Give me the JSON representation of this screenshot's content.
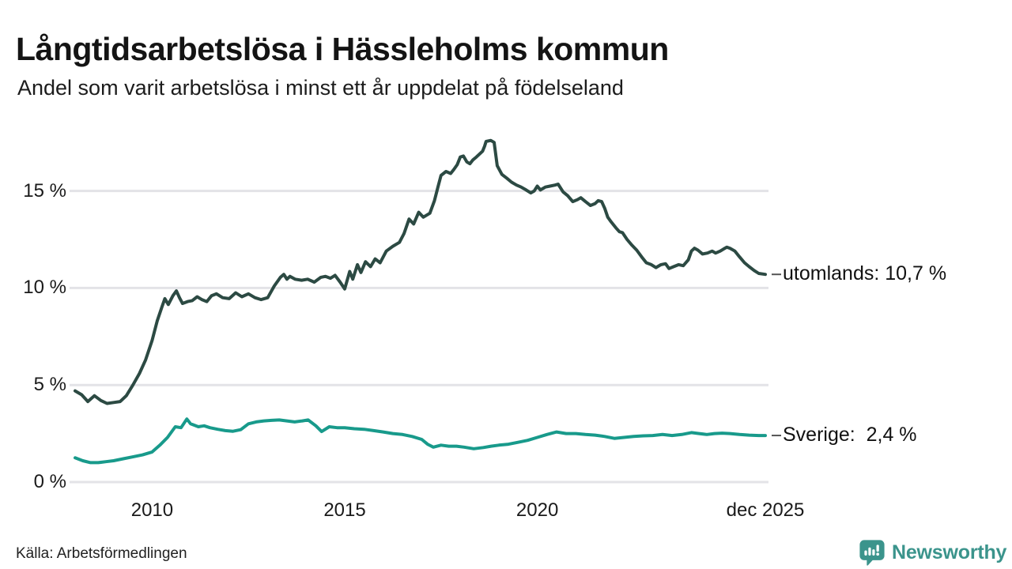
{
  "header": {
    "title": "Långtidsarbetslösa i Hässleholms kommun",
    "subtitle": "Andel som varit arbetslösa i minst ett år uppdelat på födelseland"
  },
  "footer": {
    "source": "Källa: Arbetsförmedlingen",
    "brand": "Newsworthy",
    "brand_color": "#3b948c",
    "logo_icon": "bar-chart-speech-bubble-icon"
  },
  "colors": {
    "grid": "#e3e3e7",
    "axis_text": "#1a1a1a",
    "end_dash": "#555555",
    "background": "#ffffff"
  },
  "chart_data": {
    "type": "line",
    "title": "Långtidsarbetslösa i Hässleholms kommun",
    "subtitle": "Andel som varit arbetslösa i minst ett år uppdelat på födelseland",
    "xlabel": "",
    "ylabel": "",
    "grid": true,
    "legend_position": "end-of-line",
    "x_axis": {
      "range": [
        2008.0,
        2025.92
      ],
      "ticks": [
        {
          "year": 2010,
          "label": "2010"
        },
        {
          "year": 2015,
          "label": "2015"
        },
        {
          "year": 2020,
          "label": "2020"
        },
        {
          "year": 2025.92,
          "label": "dec 2025"
        }
      ]
    },
    "y_axis": {
      "unit": "%",
      "range": [
        0,
        18
      ],
      "ticks": [
        0,
        5,
        10,
        15
      ],
      "tick_labels": [
        "0 %",
        "5 %",
        "10 %",
        "15 %"
      ]
    },
    "series": [
      {
        "name": "utomlands",
        "label": "utomlands: 10,7 %",
        "end_value": "10,7 %",
        "color": "#2c4a43",
        "points": [
          [
            2008.0,
            4.7
          ],
          [
            2008.17,
            4.5
          ],
          [
            2008.33,
            4.15
          ],
          [
            2008.5,
            4.45
          ],
          [
            2008.67,
            4.2
          ],
          [
            2008.83,
            4.05
          ],
          [
            2009.0,
            4.1
          ],
          [
            2009.17,
            4.15
          ],
          [
            2009.33,
            4.45
          ],
          [
            2009.5,
            5.0
          ],
          [
            2009.67,
            5.6
          ],
          [
            2009.83,
            6.3
          ],
          [
            2010.0,
            7.3
          ],
          [
            2010.13,
            8.3
          ],
          [
            2010.25,
            9.0
          ],
          [
            2010.33,
            9.45
          ],
          [
            2010.42,
            9.15
          ],
          [
            2010.54,
            9.6
          ],
          [
            2010.63,
            9.85
          ],
          [
            2010.71,
            9.5
          ],
          [
            2010.79,
            9.2
          ],
          [
            2010.92,
            9.3
          ],
          [
            2011.04,
            9.35
          ],
          [
            2011.17,
            9.55
          ],
          [
            2011.29,
            9.4
          ],
          [
            2011.42,
            9.3
          ],
          [
            2011.54,
            9.6
          ],
          [
            2011.67,
            9.7
          ],
          [
            2011.83,
            9.5
          ],
          [
            2012.0,
            9.45
          ],
          [
            2012.17,
            9.75
          ],
          [
            2012.33,
            9.55
          ],
          [
            2012.5,
            9.7
          ],
          [
            2012.67,
            9.5
          ],
          [
            2012.83,
            9.4
          ],
          [
            2013.0,
            9.5
          ],
          [
            2013.17,
            10.1
          ],
          [
            2013.33,
            10.55
          ],
          [
            2013.42,
            10.7
          ],
          [
            2013.5,
            10.45
          ],
          [
            2013.58,
            10.6
          ],
          [
            2013.71,
            10.45
          ],
          [
            2013.88,
            10.4
          ],
          [
            2014.04,
            10.45
          ],
          [
            2014.21,
            10.3
          ],
          [
            2014.38,
            10.55
          ],
          [
            2014.5,
            10.6
          ],
          [
            2014.63,
            10.5
          ],
          [
            2014.75,
            10.65
          ],
          [
            2014.88,
            10.3
          ],
          [
            2015.0,
            9.95
          ],
          [
            2015.13,
            10.85
          ],
          [
            2015.21,
            10.45
          ],
          [
            2015.33,
            11.2
          ],
          [
            2015.42,
            10.8
          ],
          [
            2015.54,
            11.35
          ],
          [
            2015.67,
            11.1
          ],
          [
            2015.79,
            11.5
          ],
          [
            2015.92,
            11.3
          ],
          [
            2016.08,
            11.9
          ],
          [
            2016.25,
            12.15
          ],
          [
            2016.42,
            12.35
          ],
          [
            2016.54,
            12.8
          ],
          [
            2016.67,
            13.55
          ],
          [
            2016.79,
            13.3
          ],
          [
            2016.92,
            13.9
          ],
          [
            2017.04,
            13.65
          ],
          [
            2017.21,
            13.85
          ],
          [
            2017.33,
            14.5
          ],
          [
            2017.42,
            15.2
          ],
          [
            2017.5,
            15.8
          ],
          [
            2017.63,
            16.0
          ],
          [
            2017.75,
            15.9
          ],
          [
            2017.83,
            16.1
          ],
          [
            2017.92,
            16.35
          ],
          [
            2018.0,
            16.75
          ],
          [
            2018.08,
            16.8
          ],
          [
            2018.17,
            16.5
          ],
          [
            2018.25,
            16.4
          ],
          [
            2018.33,
            16.6
          ],
          [
            2018.42,
            16.75
          ],
          [
            2018.5,
            16.9
          ],
          [
            2018.58,
            17.05
          ],
          [
            2018.63,
            17.3
          ],
          [
            2018.67,
            17.55
          ],
          [
            2018.79,
            17.6
          ],
          [
            2018.88,
            17.5
          ],
          [
            2018.96,
            16.3
          ],
          [
            2019.08,
            15.85
          ],
          [
            2019.21,
            15.65
          ],
          [
            2019.33,
            15.45
          ],
          [
            2019.46,
            15.3
          ],
          [
            2019.58,
            15.2
          ],
          [
            2019.71,
            15.05
          ],
          [
            2019.83,
            14.9
          ],
          [
            2019.92,
            15.0
          ],
          [
            2020.0,
            15.25
          ],
          [
            2020.08,
            15.05
          ],
          [
            2020.21,
            15.2
          ],
          [
            2020.33,
            15.25
          ],
          [
            2020.46,
            15.3
          ],
          [
            2020.54,
            15.35
          ],
          [
            2020.67,
            14.95
          ],
          [
            2020.79,
            14.75
          ],
          [
            2020.92,
            14.45
          ],
          [
            2021.04,
            14.55
          ],
          [
            2021.13,
            14.65
          ],
          [
            2021.25,
            14.45
          ],
          [
            2021.38,
            14.25
          ],
          [
            2021.5,
            14.35
          ],
          [
            2021.58,
            14.5
          ],
          [
            2021.67,
            14.45
          ],
          [
            2021.75,
            14.1
          ],
          [
            2021.83,
            13.65
          ],
          [
            2021.92,
            13.4
          ],
          [
            2022.04,
            13.1
          ],
          [
            2022.13,
            12.9
          ],
          [
            2022.21,
            12.85
          ],
          [
            2022.33,
            12.5
          ],
          [
            2022.46,
            12.2
          ],
          [
            2022.58,
            11.95
          ],
          [
            2022.71,
            11.6
          ],
          [
            2022.83,
            11.3
          ],
          [
            2022.96,
            11.2
          ],
          [
            2023.08,
            11.05
          ],
          [
            2023.21,
            11.2
          ],
          [
            2023.33,
            11.25
          ],
          [
            2023.42,
            11.0
          ],
          [
            2023.54,
            11.1
          ],
          [
            2023.67,
            11.2
          ],
          [
            2023.79,
            11.15
          ],
          [
            2023.92,
            11.45
          ],
          [
            2024.0,
            11.9
          ],
          [
            2024.08,
            12.05
          ],
          [
            2024.17,
            11.95
          ],
          [
            2024.29,
            11.75
          ],
          [
            2024.42,
            11.8
          ],
          [
            2024.54,
            11.9
          ],
          [
            2024.63,
            11.8
          ],
          [
            2024.75,
            11.9
          ],
          [
            2024.83,
            12.0
          ],
          [
            2024.92,
            12.1
          ],
          [
            2025.0,
            12.05
          ],
          [
            2025.13,
            11.9
          ],
          [
            2025.25,
            11.6
          ],
          [
            2025.38,
            11.3
          ],
          [
            2025.5,
            11.1
          ],
          [
            2025.63,
            10.9
          ],
          [
            2025.75,
            10.75
          ],
          [
            2025.92,
            10.7
          ]
        ]
      },
      {
        "name": "Sverige",
        "label": "Sverige:  2,4 %",
        "end_value": "2,4 %",
        "color": "#189a8b",
        "points": [
          [
            2008.0,
            1.25
          ],
          [
            2008.2,
            1.1
          ],
          [
            2008.4,
            1.0
          ],
          [
            2008.6,
            1.0
          ],
          [
            2008.8,
            1.05
          ],
          [
            2009.0,
            1.1
          ],
          [
            2009.25,
            1.2
          ],
          [
            2009.5,
            1.3
          ],
          [
            2009.75,
            1.4
          ],
          [
            2010.0,
            1.55
          ],
          [
            2010.2,
            1.9
          ],
          [
            2010.4,
            2.3
          ],
          [
            2010.6,
            2.85
          ],
          [
            2010.75,
            2.8
          ],
          [
            2010.9,
            3.25
          ],
          [
            2011.0,
            3.0
          ],
          [
            2011.2,
            2.85
          ],
          [
            2011.35,
            2.9
          ],
          [
            2011.5,
            2.8
          ],
          [
            2011.7,
            2.72
          ],
          [
            2011.9,
            2.65
          ],
          [
            2012.1,
            2.62
          ],
          [
            2012.3,
            2.7
          ],
          [
            2012.5,
            3.0
          ],
          [
            2012.7,
            3.1
          ],
          [
            2012.9,
            3.15
          ],
          [
            2013.1,
            3.18
          ],
          [
            2013.3,
            3.2
          ],
          [
            2013.5,
            3.15
          ],
          [
            2013.7,
            3.1
          ],
          [
            2013.9,
            3.15
          ],
          [
            2014.05,
            3.2
          ],
          [
            2014.25,
            2.9
          ],
          [
            2014.4,
            2.6
          ],
          [
            2014.6,
            2.85
          ],
          [
            2014.8,
            2.8
          ],
          [
            2015.0,
            2.8
          ],
          [
            2015.25,
            2.75
          ],
          [
            2015.5,
            2.72
          ],
          [
            2015.75,
            2.65
          ],
          [
            2016.0,
            2.58
          ],
          [
            2016.25,
            2.5
          ],
          [
            2016.5,
            2.45
          ],
          [
            2016.75,
            2.35
          ],
          [
            2017.0,
            2.2
          ],
          [
            2017.15,
            1.95
          ],
          [
            2017.3,
            1.8
          ],
          [
            2017.5,
            1.9
          ],
          [
            2017.7,
            1.85
          ],
          [
            2017.9,
            1.85
          ],
          [
            2018.1,
            1.8
          ],
          [
            2018.35,
            1.72
          ],
          [
            2018.6,
            1.78
          ],
          [
            2018.8,
            1.85
          ],
          [
            2019.0,
            1.9
          ],
          [
            2019.25,
            1.95
          ],
          [
            2019.5,
            2.05
          ],
          [
            2019.75,
            2.15
          ],
          [
            2020.0,
            2.3
          ],
          [
            2020.25,
            2.45
          ],
          [
            2020.5,
            2.58
          ],
          [
            2020.75,
            2.5
          ],
          [
            2021.0,
            2.5
          ],
          [
            2021.25,
            2.45
          ],
          [
            2021.5,
            2.42
          ],
          [
            2021.75,
            2.35
          ],
          [
            2022.0,
            2.25
          ],
          [
            2022.25,
            2.3
          ],
          [
            2022.5,
            2.35
          ],
          [
            2022.75,
            2.38
          ],
          [
            2023.0,
            2.4
          ],
          [
            2023.25,
            2.45
          ],
          [
            2023.5,
            2.4
          ],
          [
            2023.75,
            2.45
          ],
          [
            2024.0,
            2.55
          ],
          [
            2024.2,
            2.5
          ],
          [
            2024.4,
            2.45
          ],
          [
            2024.6,
            2.5
          ],
          [
            2024.8,
            2.52
          ],
          [
            2025.0,
            2.5
          ],
          [
            2025.25,
            2.45
          ],
          [
            2025.5,
            2.42
          ],
          [
            2025.75,
            2.4
          ],
          [
            2025.92,
            2.4
          ]
        ]
      }
    ]
  }
}
